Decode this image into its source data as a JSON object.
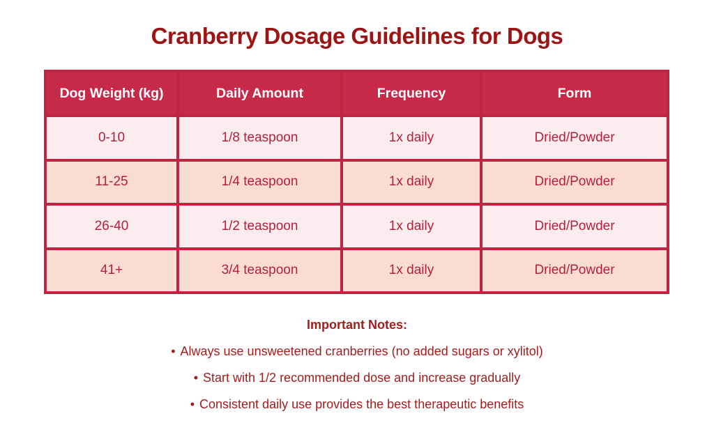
{
  "title": {
    "text": "Cranberry Dosage Guidelines for Dogs",
    "color": "#9C1515"
  },
  "table": {
    "columns": [
      "Dog Weight (kg)",
      "Daily Amount",
      "Frequency",
      "Form"
    ],
    "rows": [
      [
        "0-10",
        "1/8 teaspoon",
        "1x daily",
        "Dried/Powder"
      ],
      [
        "11-25",
        "1/4 teaspoon",
        "1x daily",
        "Dried/Powder"
      ],
      [
        "26-40",
        "1/2 teaspoon",
        "1x daily",
        "Dried/Powder"
      ],
      [
        "41+",
        "3/4 teaspoon",
        "1x daily",
        "Dried/Powder"
      ]
    ],
    "colors": {
      "header_bg": "#C72A49",
      "header_text": "#FFFFFF",
      "border": "#C12441",
      "row_light_bg": "#FBECF0",
      "row_peach_bg": "#FADCD4",
      "cell_text": "#B5203A"
    }
  },
  "notes": {
    "heading": "Important Notes:",
    "bullet": "•",
    "items": [
      "Always use unsweetened cranberries (no added sugars or xylitol)",
      "Start with 1/2 recommended dose and increase gradually",
      "Consistent daily use provides the best therapeutic benefits"
    ],
    "color": "#A31D1D"
  },
  "chart_data": {
    "type": "table",
    "title": "Cranberry Dosage Guidelines for Dogs",
    "columns": [
      "Dog Weight (kg)",
      "Daily Amount",
      "Frequency",
      "Form"
    ],
    "rows": [
      [
        "0-10",
        "1/8 teaspoon",
        "1x daily",
        "Dried/Powder"
      ],
      [
        "11-25",
        "1/4 teaspoon",
        "1x daily",
        "Dried/Powder"
      ],
      [
        "26-40",
        "1/2 teaspoon",
        "1x daily",
        "Dried/Powder"
      ],
      [
        "41+",
        "3/4 teaspoon",
        "1x daily",
        "Dried/Powder"
      ]
    ],
    "annotations": [
      "Important Notes:",
      "Always use unsweetened cranberries (no added sugars or xylitol)",
      "Start with 1/2 recommended dose and increase gradually",
      "Consistent daily use provides the best therapeutic benefits"
    ],
    "layout_hints": {
      "header_style": "crimson background, white bold text",
      "row_striping": "alternating light pink / peach",
      "grid": "on, crimson borders"
    }
  }
}
